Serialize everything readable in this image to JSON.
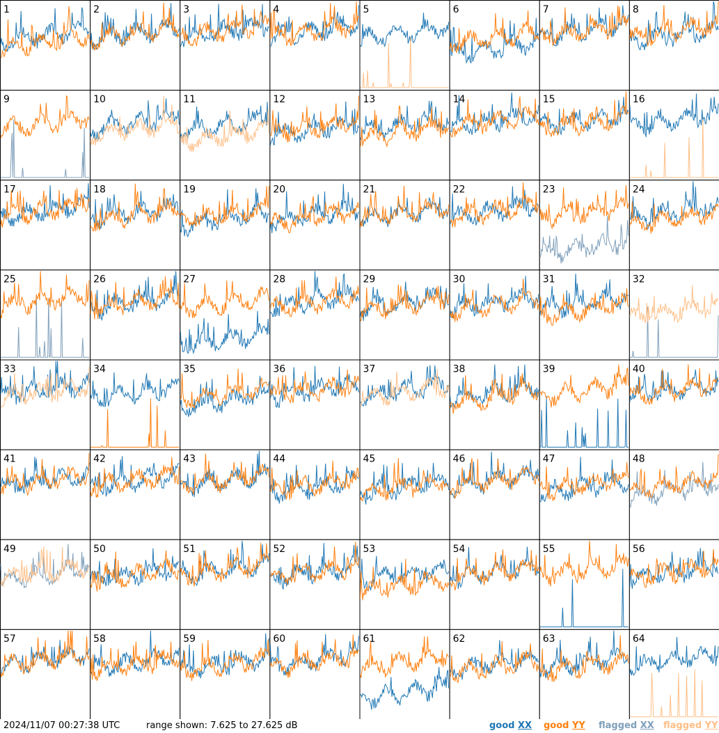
{
  "footer": {
    "timestamp": "2024/11/07 00:27:38 UTC",
    "range_text": "range shown: 7.625 to 27.625 dB"
  },
  "legend": [
    {
      "label": "good",
      "pol": "XX",
      "color": "#1f77b4"
    },
    {
      "label": "good",
      "pol": "YY",
      "color": "#ff7f0e"
    },
    {
      "label": "flagged",
      "pol": "XX",
      "color": "#7f9fba"
    },
    {
      "label": "flagged",
      "pol": "YY",
      "color": "#ffbf87"
    }
  ],
  "chart_data": {
    "type": "line",
    "description_units": "dB",
    "ylim": [
      7.625,
      27.625
    ],
    "layout": "8x8 small multiples",
    "panels": [
      {
        "id": "1",
        "status": "good",
        "xx_level": 20.5,
        "yy_level": 19.0
      },
      {
        "id": "2",
        "status": "good",
        "xx_level": 21.0,
        "yy_level": 21.0
      },
      {
        "id": "3",
        "status": "good",
        "xx_level": 21.5,
        "yy_level": 21.5
      },
      {
        "id": "4",
        "status": "good",
        "xx_level": 21.5,
        "yy_level": 21.5
      },
      {
        "id": "5",
        "status": "good-xx-flagged-yy",
        "xx_level": 21.0,
        "yy_level": 8.0
      },
      {
        "id": "6",
        "status": "good",
        "xx_level": 17.5,
        "yy_level": 20.0
      },
      {
        "id": "7",
        "status": "good",
        "xx_level": 21.5,
        "yy_level": 21.5
      },
      {
        "id": "8",
        "status": "good",
        "xx_level": 20.5,
        "yy_level": 21.5
      },
      {
        "id": "9",
        "status": "flagged-xx-good-yy",
        "xx_level": 9.0,
        "yy_level": 21.0
      },
      {
        "id": "10",
        "status": "flagged-yy-good-xx",
        "xx_level": 21.0,
        "yy_level": 19.5
      },
      {
        "id": "11",
        "status": "flagged-yy-good-xx",
        "xx_level": 20.5,
        "yy_level": 18.0
      },
      {
        "id": "12",
        "status": "good",
        "xx_level": 19.5,
        "yy_level": 20.0
      },
      {
        "id": "13",
        "status": "good",
        "xx_level": 20.5,
        "yy_level": 19.0
      },
      {
        "id": "14",
        "status": "good",
        "xx_level": 21.5,
        "yy_level": 21.5
      },
      {
        "id": "15",
        "status": "good",
        "xx_level": 21.5,
        "yy_level": 21.0
      },
      {
        "id": "16",
        "status": "good-xx-flagged-yy",
        "xx_level": 21.5,
        "yy_level": 8.0
      },
      {
        "id": "17",
        "status": "good",
        "xx_level": 21.5,
        "yy_level": 21.5
      },
      {
        "id": "18",
        "status": "good",
        "xx_level": 21.0,
        "yy_level": 20.5
      },
      {
        "id": "19",
        "status": "good",
        "xx_level": 19.5,
        "yy_level": 20.5
      },
      {
        "id": "20",
        "status": "good",
        "xx_level": 20.5,
        "yy_level": 20.0
      },
      {
        "id": "21",
        "status": "good",
        "xx_level": 21.0,
        "yy_level": 21.0
      },
      {
        "id": "22",
        "status": "good",
        "xx_level": 21.5,
        "yy_level": 21.5
      },
      {
        "id": "23",
        "status": "flagged-xx-good-yy",
        "xx_level": 13.0,
        "yy_level": 21.0
      },
      {
        "id": "24",
        "status": "good",
        "xx_level": 21.0,
        "yy_level": 19.5
      },
      {
        "id": "25",
        "status": "flagged-xx-good-yy",
        "xx_level": 8.0,
        "yy_level": 21.5
      },
      {
        "id": "26",
        "status": "good",
        "xx_level": 21.0,
        "yy_level": 21.0
      },
      {
        "id": "27",
        "status": "good",
        "xx_level": 12.5,
        "yy_level": 21.0
      },
      {
        "id": "28",
        "status": "good",
        "xx_level": 21.5,
        "yy_level": 21.0
      },
      {
        "id": "29",
        "status": "good",
        "xx_level": 21.0,
        "yy_level": 20.5
      },
      {
        "id": "30",
        "status": "good",
        "xx_level": 21.0,
        "yy_level": 20.5
      },
      {
        "id": "31",
        "status": "good",
        "xx_level": 21.0,
        "yy_level": 19.5
      },
      {
        "id": "32",
        "status": "flagged",
        "xx_level": 8.0,
        "yy_level": 19.0
      },
      {
        "id": "33",
        "status": "flagged-yy-good-xx",
        "xx_level": 21.5,
        "yy_level": 21.0
      },
      {
        "id": "34",
        "status": "good",
        "xx_level": 21.0,
        "yy_level": 8.0
      },
      {
        "id": "35",
        "status": "good",
        "xx_level": 19.0,
        "yy_level": 20.5
      },
      {
        "id": "36",
        "status": "good",
        "xx_level": 21.5,
        "yy_level": 21.5
      },
      {
        "id": "37",
        "status": "flagged-yy-good-xx",
        "xx_level": 21.5,
        "yy_level": 21.0
      },
      {
        "id": "38",
        "status": "good",
        "xx_level": 21.0,
        "yy_level": 20.0
      },
      {
        "id": "39",
        "status": "good",
        "xx_level": 8.5,
        "yy_level": 21.5
      },
      {
        "id": "40",
        "status": "good",
        "xx_level": 21.5,
        "yy_level": 21.5
      },
      {
        "id": "41",
        "status": "good",
        "xx_level": 21.5,
        "yy_level": 21.5
      },
      {
        "id": "42",
        "status": "good",
        "xx_level": 21.5,
        "yy_level": 21.5
      },
      {
        "id": "43",
        "status": "good",
        "xx_level": 21.5,
        "yy_level": 21.5
      },
      {
        "id": "44",
        "status": "good",
        "xx_level": 20.0,
        "yy_level": 20.5
      },
      {
        "id": "45",
        "status": "good",
        "xx_level": 20.0,
        "yy_level": 20.0
      },
      {
        "id": "46",
        "status": "good",
        "xx_level": 21.5,
        "yy_level": 21.5
      },
      {
        "id": "47",
        "status": "good",
        "xx_level": 20.0,
        "yy_level": 20.5
      },
      {
        "id": "48",
        "status": "flagged-xx-good-yy",
        "xx_level": 19.0,
        "yy_level": 20.5
      },
      {
        "id": "49",
        "status": "flagged",
        "xx_level": 20.5,
        "yy_level": 21.0
      },
      {
        "id": "50",
        "status": "good",
        "xx_level": 20.5,
        "yy_level": 20.5
      },
      {
        "id": "51",
        "status": "good",
        "xx_level": 21.5,
        "yy_level": 21.5
      },
      {
        "id": "52",
        "status": "good",
        "xx_level": 21.0,
        "yy_level": 21.0
      },
      {
        "id": "53",
        "status": "good",
        "xx_level": 20.5,
        "yy_level": 18.0
      },
      {
        "id": "54",
        "status": "good",
        "xx_level": 21.0,
        "yy_level": 21.0
      },
      {
        "id": "55",
        "status": "good",
        "xx_level": 9.0,
        "yy_level": 21.5
      },
      {
        "id": "56",
        "status": "good",
        "xx_level": 21.0,
        "yy_level": 21.0
      },
      {
        "id": "57",
        "status": "good",
        "xx_level": 21.5,
        "yy_level": 21.5
      },
      {
        "id": "58",
        "status": "good",
        "xx_level": 21.0,
        "yy_level": 20.5
      },
      {
        "id": "59",
        "status": "good",
        "xx_level": 20.5,
        "yy_level": 20.5
      },
      {
        "id": "60",
        "status": "good",
        "xx_level": 21.5,
        "yy_level": 21.0
      },
      {
        "id": "61",
        "status": "good",
        "xx_level": 14.0,
        "yy_level": 21.0
      },
      {
        "id": "62",
        "status": "good",
        "xx_level": 20.5,
        "yy_level": 20.0
      },
      {
        "id": "63",
        "status": "good",
        "xx_level": 21.0,
        "yy_level": 20.0
      },
      {
        "id": "64",
        "status": "good-xx-flagged-yy",
        "xx_level": 21.5,
        "yy_level": 8.0
      }
    ]
  }
}
